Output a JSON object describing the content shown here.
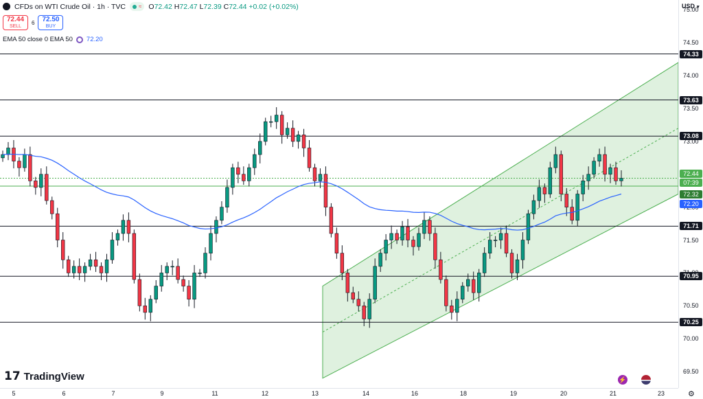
{
  "header": {
    "title": "CFDs on WTI Crude Oil · 1h · TVC",
    "ohlc": {
      "o_label": "O",
      "o": "72.42",
      "h_label": "H",
      "h": "72.47",
      "l_label": "L",
      "l": "72.39",
      "c_label": "C",
      "c": "72.44",
      "change": "+0.02 (+0.02%)"
    }
  },
  "trade": {
    "sell_price": "72.44",
    "sell_label": "SELL",
    "spread": "6",
    "buy_price": "72.50",
    "buy_label": "BUY"
  },
  "indicator": {
    "label": "EMA 50 close 0 EMA 50",
    "value": "72.20"
  },
  "axis": {
    "currency": "USD",
    "price_ticks": [
      "75.00",
      "74.50",
      "74.00",
      "73.50",
      "73.00",
      "72.50",
      "72.00",
      "71.50",
      "71.00",
      "70.50",
      "70.00",
      "69.50"
    ],
    "time_ticks": [
      "5",
      "6",
      "7",
      "9",
      "11",
      "12",
      "13",
      "14",
      "16",
      "18",
      "19",
      "20",
      "21",
      "23"
    ]
  },
  "levels": [
    "74.33",
    "73.63",
    "73.08",
    "71.71",
    "70.95",
    "70.25"
  ],
  "labels": {
    "last_price": "72.44",
    "countdown": "07:39",
    "buy_level": "72.32",
    "ema": "72.20"
  },
  "brand": {
    "name": "TradingView"
  },
  "colors": {
    "up": "#089981",
    "down": "#f23645",
    "ema": "#2962ff",
    "channel": "#4caf50"
  },
  "chart_data": {
    "type": "candlestick",
    "title": "CFDs on WTI Crude Oil · 1h · TVC",
    "ylabel": "USD",
    "ylim": [
      69.25,
      75.15
    ],
    "x_ticks": [
      "5",
      "6",
      "7",
      "9",
      "11",
      "12",
      "13",
      "14",
      "16",
      "18",
      "19",
      "20",
      "21",
      "23"
    ],
    "horizontal_levels": [
      74.33,
      73.63,
      73.08,
      71.71,
      70.95,
      70.25
    ],
    "close_series": [
      72.8,
      72.9,
      72.7,
      72.6,
      72.8,
      72.4,
      72.3,
      72.5,
      72.1,
      71.9,
      71.5,
      71.2,
      71.0,
      71.1,
      71.0,
      71.1,
      71.2,
      71.1,
      71.0,
      71.2,
      71.5,
      71.6,
      71.8,
      71.6,
      70.9,
      70.5,
      70.4,
      70.6,
      70.8,
      71.0,
      71.1,
      71.1,
      70.9,
      70.8,
      70.6,
      71.0,
      71.0,
      71.3,
      71.6,
      71.8,
      72.0,
      72.3,
      72.6,
      72.5,
      72.4,
      72.6,
      72.8,
      73.0,
      73.3,
      73.3,
      73.4,
      73.1,
      73.2,
      73.0,
      73.1,
      72.9,
      72.6,
      72.4,
      72.5,
      72.0,
      71.6,
      71.3,
      71.0,
      70.7,
      70.6,
      70.5,
      70.3,
      70.6,
      71.1,
      71.3,
      71.5,
      71.6,
      71.5,
      71.7,
      71.5,
      71.4,
      71.6,
      71.8,
      71.6,
      71.2,
      70.9,
      70.5,
      70.4,
      70.6,
      70.8,
      70.9,
      70.7,
      71.0,
      71.3,
      71.5,
      71.5,
      71.6,
      71.3,
      71.0,
      71.2,
      71.5,
      71.9,
      72.1,
      72.3,
      72.2,
      72.6,
      72.8,
      72.2,
      72.0,
      71.8,
      72.2,
      72.4,
      72.5,
      72.7,
      72.8,
      72.5,
      72.6,
      72.4,
      72.44
    ],
    "ema50_end": 72.2,
    "channel": {
      "upper_end": 74.2,
      "lower_end": 72.2,
      "start_upper": 70.8,
      "start_lower": 69.4
    }
  }
}
